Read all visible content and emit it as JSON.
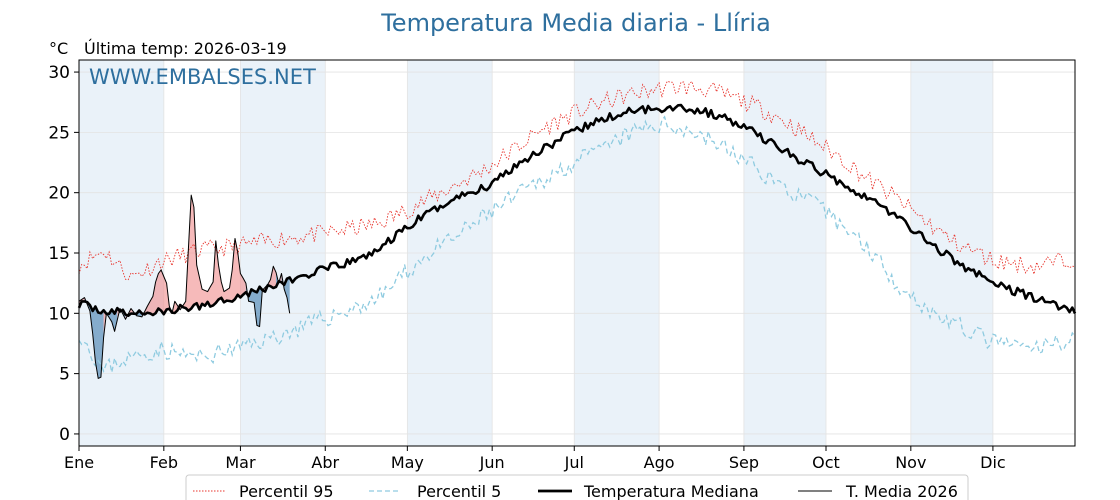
{
  "chart_data": {
    "type": "line",
    "title": "Temperatura Media diaria - Llíria",
    "unit": "°C",
    "last_update_label": "Última temp: 2026-03-19",
    "watermark": "WWW.EMBALSES.NET",
    "x_axis": {
      "type": "day_of_year",
      "range_days": [
        1,
        365
      ],
      "month_labels": [
        "Ene",
        "Feb",
        "Mar",
        "Abr",
        "May",
        "Jun",
        "Jul",
        "Ago",
        "Sep",
        "Oct",
        "Nov",
        "Dic"
      ],
      "shaded_months": [
        "Ene",
        "Mar",
        "May",
        "Jul",
        "Sep",
        "Nov"
      ]
    },
    "y_axis": {
      "range": [
        -1,
        31
      ],
      "ticks": [
        0,
        5,
        10,
        15,
        20,
        25,
        30
      ]
    },
    "grid": true,
    "legend_position": "bottom-center",
    "colors": {
      "p95": "#e8342c",
      "p5": "#8fcbe0",
      "median": "#000000",
      "current": "#000000",
      "above_fill": "#f08c8c",
      "below_fill": "#4f86b3",
      "band": "#eaf2f9",
      "title": "#2e6f9e"
    },
    "series": [
      {
        "name": "Percentil 95",
        "style": "dotted-red",
        "points": [
          [
            1,
            14.0
          ],
          [
            10,
            15.2
          ],
          [
            20,
            13.0
          ],
          [
            31,
            14.3
          ],
          [
            45,
            15.2
          ],
          [
            60,
            15.6
          ],
          [
            75,
            16.2
          ],
          [
            90,
            16.6
          ],
          [
            100,
            17.0
          ],
          [
            110,
            17.4
          ],
          [
            120,
            18.5
          ],
          [
            130,
            19.6
          ],
          [
            140,
            20.8
          ],
          [
            150,
            22.0
          ],
          [
            160,
            23.6
          ],
          [
            170,
            25.2
          ],
          [
            180,
            26.4
          ],
          [
            190,
            27.3
          ],
          [
            200,
            28.0
          ],
          [
            210,
            28.5
          ],
          [
            220,
            28.8
          ],
          [
            230,
            28.6
          ],
          [
            240,
            27.9
          ],
          [
            250,
            27.0
          ],
          [
            260,
            25.8
          ],
          [
            270,
            24.3
          ],
          [
            280,
            22.8
          ],
          [
            290,
            21.0
          ],
          [
            300,
            19.5
          ],
          [
            310,
            17.7
          ],
          [
            320,
            16.0
          ],
          [
            335,
            14.4
          ],
          [
            350,
            13.9
          ],
          [
            365,
            14.6
          ]
        ]
      },
      {
        "name": "Percentil 5",
        "style": "dashed-lightblue",
        "points": [
          [
            1,
            8.5
          ],
          [
            5,
            7.0
          ],
          [
            10,
            5.2
          ],
          [
            15,
            6.0
          ],
          [
            31,
            7.0
          ],
          [
            45,
            6.3
          ],
          [
            60,
            7.2
          ],
          [
            75,
            8.2
          ],
          [
            90,
            9.5
          ],
          [
            100,
            10.3
          ],
          [
            110,
            11.2
          ],
          [
            120,
            13.3
          ],
          [
            130,
            15.1
          ],
          [
            140,
            16.5
          ],
          [
            150,
            18.2
          ],
          [
            160,
            19.6
          ],
          [
            170,
            21.0
          ],
          [
            180,
            22.3
          ],
          [
            190,
            23.3
          ],
          [
            200,
            24.6
          ],
          [
            210,
            25.6
          ],
          [
            220,
            25.5
          ],
          [
            230,
            24.6
          ],
          [
            240,
            23.3
          ],
          [
            250,
            21.8
          ],
          [
            260,
            20.2
          ],
          [
            270,
            19.0
          ],
          [
            280,
            17.3
          ],
          [
            290,
            15.3
          ],
          [
            300,
            12.5
          ],
          [
            310,
            10.5
          ],
          [
            320,
            9.2
          ],
          [
            335,
            7.6
          ],
          [
            350,
            7.0
          ],
          [
            365,
            8.0
          ]
        ]
      },
      {
        "name": "Temperatura Mediana",
        "style": "thick-black",
        "points": [
          [
            1,
            10.8
          ],
          [
            10,
            10.2
          ],
          [
            20,
            10.0
          ],
          [
            31,
            10.1
          ],
          [
            45,
            10.6
          ],
          [
            60,
            11.5
          ],
          [
            75,
            12.5
          ],
          [
            90,
            13.6
          ],
          [
            100,
            14.2
          ],
          [
            110,
            15.2
          ],
          [
            120,
            17.0
          ],
          [
            130,
            18.5
          ],
          [
            140,
            19.7
          ],
          [
            150,
            20.5
          ],
          [
            160,
            22.2
          ],
          [
            170,
            23.6
          ],
          [
            180,
            24.8
          ],
          [
            190,
            25.9
          ],
          [
            200,
            26.6
          ],
          [
            210,
            27.0
          ],
          [
            220,
            27.1
          ],
          [
            230,
            26.7
          ],
          [
            240,
            25.9
          ],
          [
            250,
            24.7
          ],
          [
            260,
            23.3
          ],
          [
            270,
            22.0
          ],
          [
            280,
            20.8
          ],
          [
            290,
            19.5
          ],
          [
            300,
            18.0
          ],
          [
            310,
            16.2
          ],
          [
            320,
            14.5
          ],
          [
            335,
            12.5
          ],
          [
            350,
            11.3
          ],
          [
            365,
            10.2
          ]
        ]
      },
      {
        "name": "T. Media 2026",
        "style": "thin-black",
        "points": [
          [
            1,
            11.0
          ],
          [
            3,
            11.3
          ],
          [
            5,
            10.2
          ],
          [
            6,
            8.3
          ],
          [
            7,
            6.0
          ],
          [
            8,
            4.6
          ],
          [
            9,
            4.7
          ],
          [
            10,
            8.0
          ],
          [
            11,
            10.0
          ],
          [
            13,
            9.3
          ],
          [
            14,
            8.5
          ],
          [
            16,
            10.4
          ],
          [
            18,
            9.5
          ],
          [
            20,
            10.4
          ],
          [
            22,
            9.8
          ],
          [
            24,
            9.7
          ],
          [
            26,
            10.6
          ],
          [
            28,
            11.4
          ],
          [
            29,
            12.6
          ],
          [
            30,
            13.3
          ],
          [
            31,
            13.6
          ],
          [
            33,
            12.5
          ],
          [
            34,
            10.6
          ],
          [
            35,
            10.0
          ],
          [
            36,
            11.0
          ],
          [
            38,
            10.3
          ],
          [
            40,
            11.0
          ],
          [
            41,
            15.5
          ],
          [
            42,
            19.8
          ],
          [
            43,
            18.8
          ],
          [
            44,
            14.0
          ],
          [
            46,
            12.0
          ],
          [
            48,
            11.8
          ],
          [
            50,
            12.6
          ],
          [
            51,
            16.0
          ],
          [
            52,
            14.0
          ],
          [
            53,
            12.6
          ],
          [
            54,
            11.8
          ],
          [
            56,
            12.1
          ],
          [
            57,
            13.6
          ],
          [
            58,
            16.2
          ],
          [
            59,
            15.1
          ],
          [
            60,
            13.3
          ],
          [
            62,
            12.5
          ],
          [
            63,
            11.0
          ],
          [
            65,
            10.9
          ],
          [
            66,
            9.0
          ],
          [
            67,
            8.9
          ],
          [
            68,
            11.9
          ],
          [
            70,
            12.4
          ],
          [
            71,
            12.8
          ],
          [
            72,
            13.9
          ],
          [
            73,
            13.4
          ],
          [
            74,
            12.5
          ],
          [
            75,
            13.3
          ],
          [
            76,
            12.0
          ],
          [
            77,
            11.3
          ],
          [
            78,
            10.0
          ]
        ]
      }
    ]
  },
  "legend": {
    "items": [
      {
        "label": "Percentil 95"
      },
      {
        "label": "Percentil 5"
      },
      {
        "label": "Temperatura Mediana"
      },
      {
        "label": "T. Media 2026"
      }
    ]
  }
}
